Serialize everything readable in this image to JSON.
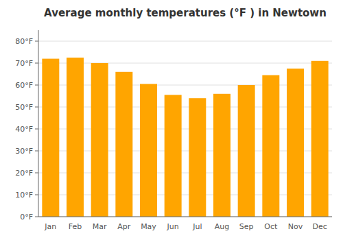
{
  "chart_data": {
    "type": "bar",
    "title": "Average monthly temperatures (°F ) in Newtown",
    "categories": [
      "Jan",
      "Feb",
      "Mar",
      "Apr",
      "May",
      "Jun",
      "Jul",
      "Aug",
      "Sep",
      "Oct",
      "Nov",
      "Dec"
    ],
    "values": [
      72,
      72.5,
      70,
      66,
      60.5,
      55.5,
      54,
      56,
      60,
      64.5,
      67.5,
      71
    ],
    "color": "#FFA500",
    "ylim": [
      0,
      85
    ],
    "yticks": [
      {
        "value": 0,
        "label": "0°F"
      },
      {
        "value": 10,
        "label": "10°F"
      },
      {
        "value": 20,
        "label": "20°F"
      },
      {
        "value": 30,
        "label": "30°F"
      },
      {
        "value": 40,
        "label": "40°F"
      },
      {
        "value": 50,
        "label": "50°F"
      },
      {
        "value": 60,
        "label": "60°F"
      },
      {
        "value": 70,
        "label": "70°F"
      },
      {
        "value": 80,
        "label": "80°F"
      }
    ],
    "grid": true
  }
}
